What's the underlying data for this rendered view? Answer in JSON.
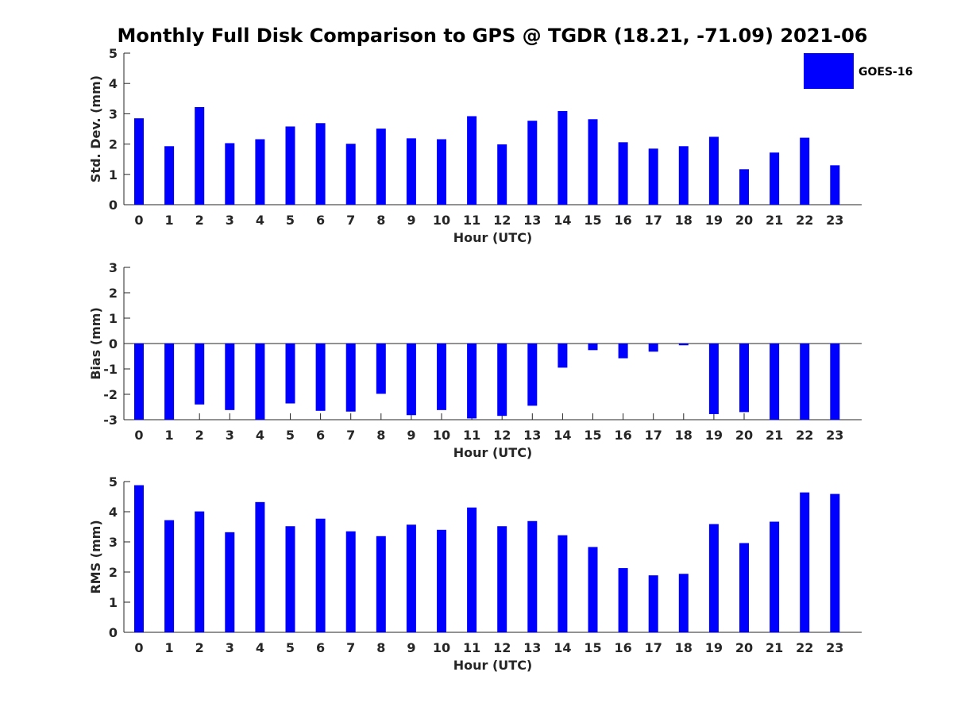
{
  "chart_data": {
    "type": "bar",
    "title": "Monthly Full Disk Comparison to GPS @ TGDR (18.21, -71.09) 2021-06",
    "legend": {
      "entries": [
        "GOES-16"
      ],
      "placement": "top-right"
    },
    "series_color": "#0000ff",
    "categories": [
      "0",
      "1",
      "2",
      "3",
      "4",
      "5",
      "6",
      "7",
      "8",
      "9",
      "10",
      "11",
      "12",
      "13",
      "14",
      "15",
      "16",
      "17",
      "18",
      "19",
      "20",
      "21",
      "22",
      "23"
    ],
    "panels": [
      {
        "id": "std",
        "xlabel": "Hour (UTC)",
        "ylabel": "Std. Dev. (mm)",
        "ylim": [
          0,
          5
        ],
        "yticks": [
          "0",
          "1",
          "2",
          "3",
          "4",
          "5"
        ],
        "series": [
          {
            "name": "GOES-16",
            "values": [
              2.85,
              1.93,
              3.22,
              2.03,
              2.16,
              2.58,
              2.69,
              2.01,
              2.51,
              2.19,
              2.16,
              2.92,
              1.99,
              2.77,
              3.09,
              2.82,
              2.06,
              1.85,
              1.93,
              2.24,
              1.17,
              1.72,
              2.21,
              1.3
            ]
          }
        ]
      },
      {
        "id": "bias",
        "xlabel": "Hour (UTC)",
        "ylabel": "Bias (mm)",
        "ylim": [
          -3,
          3
        ],
        "yticks": [
          "-3",
          "-2",
          "-1",
          "0",
          "1",
          "2",
          "3"
        ],
        "series": [
          {
            "name": "GOES-16",
            "values": [
              -3.0,
              -3.0,
              -2.4,
              -2.62,
              -3.0,
              -2.36,
              -2.65,
              -2.68,
              -1.98,
              -2.82,
              -2.62,
              -2.95,
              -2.85,
              -2.45,
              -0.95,
              -0.26,
              -0.58,
              -0.32,
              -0.07,
              -2.78,
              -2.7,
              -3.0,
              -3.0,
              -3.0
            ]
          }
        ]
      },
      {
        "id": "rms",
        "xlabel": "Hour (UTC)",
        "ylabel": "RMS (mm)",
        "ylim": [
          0,
          5
        ],
        "yticks": [
          "0",
          "1",
          "2",
          "3",
          "4",
          "5"
        ],
        "series": [
          {
            "name": "GOES-16",
            "values": [
              4.88,
              3.72,
              4.01,
              3.32,
              4.32,
              3.52,
              3.77,
              3.35,
              3.19,
              3.57,
              3.4,
              4.14,
              3.52,
              3.69,
              3.22,
              2.83,
              2.13,
              1.89,
              1.94,
              3.59,
              2.96,
              3.67,
              4.64,
              4.59
            ]
          }
        ]
      }
    ]
  }
}
